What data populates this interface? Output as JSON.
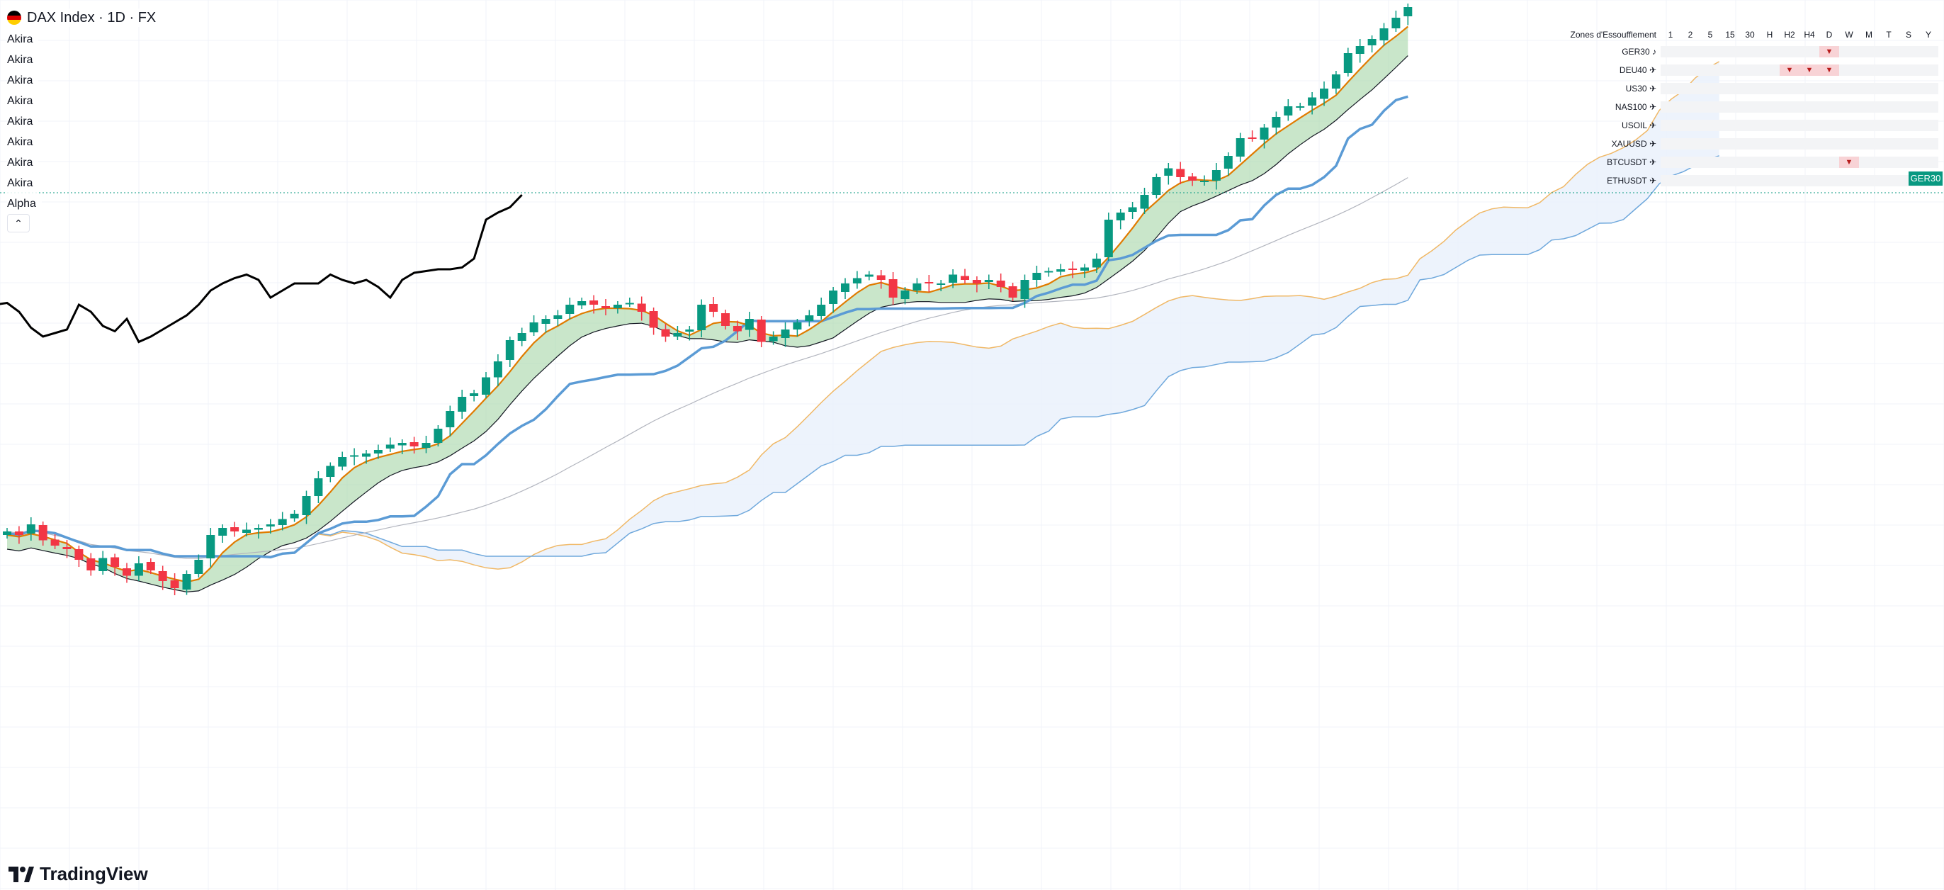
{
  "header": {
    "title": "DAX Index · 1D · FX",
    "flag_colors": [
      "#000000",
      "#dd0000",
      "#ffce00"
    ]
  },
  "indicators": [
    "Akira",
    "Akira",
    "Akira",
    "Akira",
    "Akira",
    "Akira",
    "Akira",
    "Akira",
    "Alpha"
  ],
  "collapse_icon": "chevron-up-icon",
  "zones_table": {
    "title": "Zones d'Essoufflement",
    "columns": [
      "1",
      "2",
      "5",
      "15",
      "30",
      "H",
      "H2",
      "H4",
      "D",
      "W",
      "M",
      "T",
      "S",
      "Y"
    ],
    "rows": [
      {
        "name": "GER30",
        "icon": "music-note-icon",
        "marks": [
          "D"
        ]
      },
      {
        "name": "DEU40",
        "icon": "airplane-icon",
        "marks": [
          "H2",
          "H4",
          "D"
        ]
      },
      {
        "name": "US30",
        "icon": "airplane-icon",
        "marks": []
      },
      {
        "name": "NAS100",
        "icon": "airplane-icon",
        "marks": []
      },
      {
        "name": "USOIL",
        "icon": "airplane-icon",
        "marks": []
      },
      {
        "name": "XAUUSD",
        "icon": "airplane-icon",
        "marks": []
      },
      {
        "name": "BTCUSDT",
        "icon": "airplane-icon",
        "marks": [
          "W"
        ]
      },
      {
        "name": "ETHUSDT",
        "icon": "airplane-icon",
        "marks": []
      }
    ],
    "mark_symbol": "▼"
  },
  "price_tag": "GER30",
  "brand": "TradingView",
  "colors": {
    "up": "#089981",
    "down": "#f23645",
    "kijun": "#5b9bd5",
    "tenkan": "#e07b00",
    "chikou": "#000000",
    "cloud_bull": "#e8f0fb",
    "cloud_bear": "#fde4e4",
    "band_fill": "#a5d6a7"
  },
  "chart_data": {
    "type": "candlestick",
    "closes": [
      100,
      98,
      104,
      95,
      92,
      90,
      84,
      78,
      85,
      80,
      75,
      82,
      78,
      72,
      68,
      76,
      84,
      98,
      102,
      100,
      101,
      102,
      104,
      107,
      110,
      120,
      130,
      137,
      142,
      143,
      144,
      146,
      149,
      150,
      148,
      150,
      158,
      168,
      176,
      178,
      187,
      196,
      208,
      212,
      218,
      220,
      222,
      228,
      230,
      228,
      226,
      228,
      229,
      224,
      215,
      210,
      212,
      214,
      228,
      224,
      216,
      213,
      220,
      207,
      210,
      214,
      218,
      222,
      228,
      236,
      240,
      243,
      245,
      242,
      232,
      236,
      240,
      240,
      240,
      245,
      242,
      240,
      242,
      238,
      232,
      242,
      246,
      247,
      248,
      248,
      249,
      254,
      276,
      280,
      283,
      290,
      300,
      305,
      300,
      298,
      298,
      304,
      312,
      322,
      322,
      328,
      334,
      340,
      340,
      345,
      350,
      358,
      370,
      374,
      378,
      384,
      390,
      396
    ]
  }
}
